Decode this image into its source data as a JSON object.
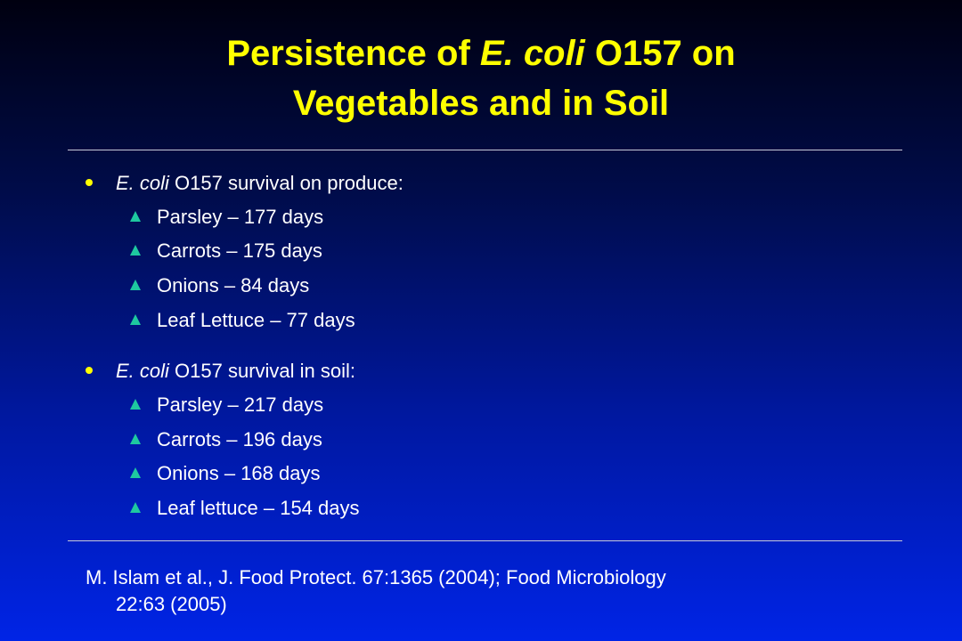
{
  "title": {
    "line1_pre": "Persistence of ",
    "line1_italic": "E. coli",
    "line1_post": " O157 on",
    "line2": "Vegetables and in Soil"
  },
  "sections": [
    {
      "heading_italic": "E. coli",
      "heading_rest": " O157 survival on produce:",
      "items": [
        "Parsley – 177 days",
        "Carrots – 175 days",
        "Onions – 84 days",
        "Leaf Lettuce – 77 days"
      ]
    },
    {
      "heading_italic": "E. coli",
      "heading_rest": " O157 survival in soil:",
      "items": [
        "Parsley – 217 days",
        "Carrots – 196 days",
        "Onions – 168 days",
        "Leaf lettuce – 154 days"
      ]
    }
  ],
  "citation": {
    "line1": "M. Islam et al., J. Food Protect. 67:1365 (2004); Food Microbiology",
    "line2": "22:63 (2005)"
  },
  "colors": {
    "title": "#ffff00",
    "bullet_dot": "#ffff00",
    "sub_bullet": "#1ec8a0",
    "text": "#ffffff"
  },
  "icons": {
    "bullet": "yellow-dot-icon",
    "sub_bullet": "teal-triangle-icon"
  }
}
